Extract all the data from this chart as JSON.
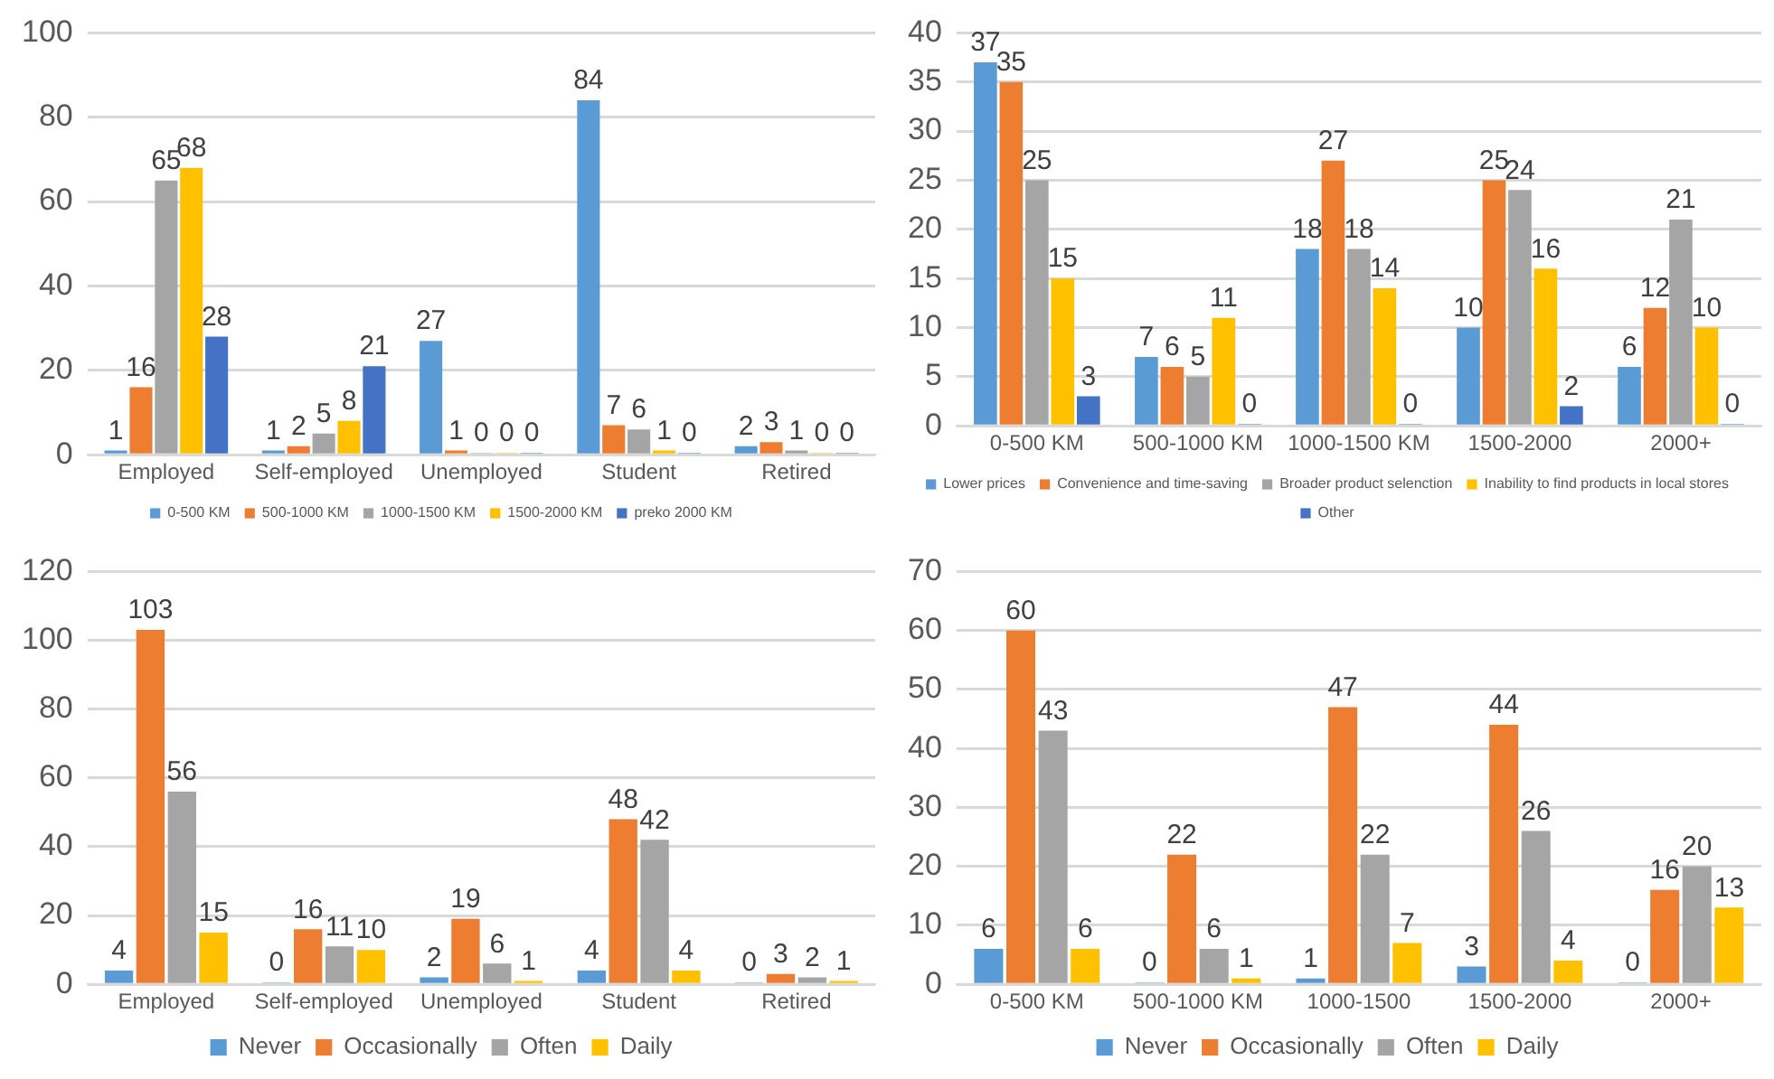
{
  "chart_data": [
    {
      "type": "bar",
      "categories": [
        "Employed",
        "Self-employed",
        "Unemployed",
        "Student",
        "Retired"
      ],
      "series": [
        {
          "name": "0-500 KM",
          "color": "#5b9bd5",
          "values": [
            1,
            1,
            27,
            84,
            2
          ]
        },
        {
          "name": "500-1000 KM",
          "color": "#ed7d31",
          "values": [
            16,
            2,
            1,
            7,
            3
          ]
        },
        {
          "name": "1000-1500 KM",
          "color": "#a5a5a5",
          "values": [
            65,
            5,
            0,
            6,
            1
          ]
        },
        {
          "name": "1500-2000 KM",
          "color": "#ffc000",
          "values": [
            68,
            8,
            0,
            1,
            0
          ]
        },
        {
          "name": "preko 2000 KM",
          "color": "#4472c4",
          "values": [
            28,
            21,
            0,
            0,
            0
          ]
        }
      ],
      "ylim": [
        0,
        100
      ],
      "yticks": [
        0,
        20,
        40,
        60,
        80,
        100
      ],
      "grid": "y",
      "legend": "bottom",
      "data_labels": true
    },
    {
      "type": "bar",
      "categories": [
        "0-500 KM",
        "500-1000 KM",
        "1000-1500 KM",
        "1500-2000",
        "2000+"
      ],
      "series": [
        {
          "name": "Lower prices",
          "color": "#5b9bd5",
          "values": [
            37,
            7,
            18,
            10,
            6
          ]
        },
        {
          "name": "Convenience and time-saving",
          "color": "#ed7d31",
          "values": [
            35,
            6,
            27,
            25,
            12
          ]
        },
        {
          "name": "Broader product selenction",
          "color": "#a5a5a5",
          "values": [
            25,
            5,
            18,
            24,
            21
          ]
        },
        {
          "name": "Inability to find products in local stores",
          "color": "#ffc000",
          "values": [
            15,
            11,
            14,
            16,
            10
          ]
        },
        {
          "name": "Other",
          "color": "#4472c4",
          "values": [
            3,
            0,
            0,
            2,
            0
          ]
        }
      ],
      "ylim": [
        0,
        40
      ],
      "yticks": [
        0,
        5,
        10,
        15,
        20,
        25,
        30,
        35,
        40
      ],
      "grid": "y",
      "legend": "bottom",
      "data_labels": true
    },
    {
      "type": "bar",
      "categories": [
        "Employed",
        "Self-employed",
        "Unemployed",
        "Student",
        "Retired"
      ],
      "series": [
        {
          "name": "Never",
          "color": "#5b9bd5",
          "values": [
            4,
            0,
            2,
            4,
            0
          ]
        },
        {
          "name": "Occasionally",
          "color": "#ed7d31",
          "values": [
            103,
            16,
            19,
            48,
            3
          ]
        },
        {
          "name": "Often",
          "color": "#a5a5a5",
          "values": [
            56,
            11,
            6,
            42,
            2
          ]
        },
        {
          "name": "Daily",
          "color": "#ffc000",
          "values": [
            15,
            10,
            1,
            4,
            1
          ]
        }
      ],
      "ylim": [
        0,
        120
      ],
      "yticks": [
        0,
        20,
        40,
        60,
        80,
        100,
        120
      ],
      "grid": "y",
      "legend": "bottom",
      "data_labels": true
    },
    {
      "type": "bar",
      "categories": [
        "0-500 KM",
        "500-1000 KM",
        "1000-1500",
        "1500-2000",
        "2000+"
      ],
      "series": [
        {
          "name": "Never",
          "color": "#5b9bd5",
          "values": [
            6,
            0,
            1,
            3,
            0
          ]
        },
        {
          "name": "Occasionally",
          "color": "#ed7d31",
          "values": [
            60,
            22,
            47,
            44,
            16
          ]
        },
        {
          "name": "Often",
          "color": "#a5a5a5",
          "values": [
            43,
            6,
            22,
            26,
            20
          ]
        },
        {
          "name": "Daily",
          "color": "#ffc000",
          "values": [
            6,
            1,
            7,
            4,
            13
          ]
        }
      ],
      "ylim": [
        0,
        70
      ],
      "yticks": [
        0,
        10,
        20,
        30,
        40,
        50,
        60,
        70
      ],
      "grid": "y",
      "legend": "bottom",
      "data_labels": true
    }
  ]
}
